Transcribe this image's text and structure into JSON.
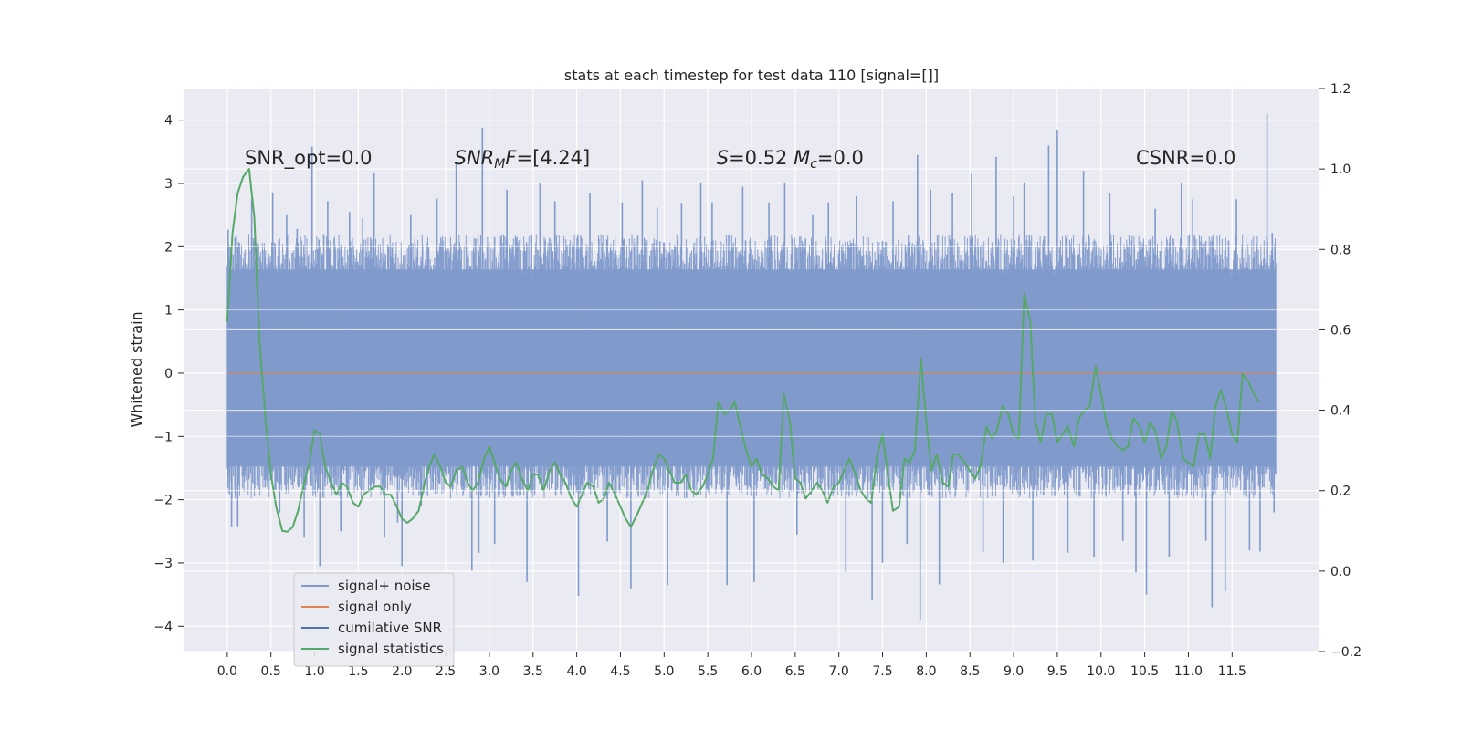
{
  "chart_data": {
    "type": "line",
    "title": "stats at each timestep for test data 110 [signal=[]]",
    "ylabel": "Whitened strain",
    "xlabel": "",
    "xlim": [
      -0.5,
      12.5
    ],
    "ylim": [
      -4.4,
      4.5
    ],
    "y2lim": [
      -0.2,
      1.2
    ],
    "grid": true,
    "legend_position": "lower-left",
    "x_ticks": [
      "0.0",
      "0.5",
      "1.0",
      "1.5",
      "2.0",
      "2.5",
      "3.0",
      "3.5",
      "4.0",
      "4.5",
      "5.0",
      "5.5",
      "6.0",
      "6.5",
      "7.0",
      "7.5",
      "8.0",
      "8.5",
      "9.0",
      "9.5",
      "10.0",
      "10.5",
      "11.0",
      "11.5"
    ],
    "y_ticks": [
      "4",
      "3",
      "2",
      "1",
      "0",
      "−1",
      "−2",
      "−3",
      "−4"
    ],
    "y2_ticks": [
      "1.2",
      "1.0",
      "0.8",
      "0.6",
      "0.4",
      "0.2",
      "0.0",
      "−0.2"
    ],
    "annotations": [
      {
        "id": "snr-opt",
        "text": "SNR_opt=0.0",
        "x": 0.2,
        "y": 3.3
      },
      {
        "id": "snr-mf",
        "parts": [
          {
            "text": "SNR",
            "italic": true
          },
          {
            "text": "M",
            "italic": true,
            "sub": true
          },
          {
            "text": "F",
            "italic": true
          },
          {
            "text": "=[4.24]",
            "italic": false
          }
        ],
        "x": 2.6,
        "y": 3.3
      },
      {
        "id": "s-mc",
        "parts": [
          {
            "text": "S",
            "italic": true
          },
          {
            "text": "=0.52   ",
            "italic": false
          },
          {
            "text": "M",
            "italic": true
          },
          {
            "text": "c",
            "italic": true,
            "sub": true
          },
          {
            "text": "=0.0",
            "italic": false
          }
        ],
        "x": 5.6,
        "y": 3.3
      },
      {
        "id": "csnr",
        "text": "CSNR=0.0",
        "x": 10.4,
        "y": 3.3
      }
    ],
    "series": [
      {
        "name": "signal+ noise",
        "color": "#7f9acb",
        "axis": "left",
        "kind": "noise",
        "x_range": [
          0.0,
          12.0
        ],
        "typical_range": [
          -1.8,
          2.0
        ],
        "spikes": [
          [
            0.01,
            2.27
          ],
          [
            0.05,
            -2.42
          ],
          [
            0.12,
            -2.42
          ],
          [
            0.28,
            2.75
          ],
          [
            0.52,
            2.86
          ],
          [
            0.6,
            -2.2
          ],
          [
            0.68,
            2.5
          ],
          [
            0.8,
            2.28
          ],
          [
            0.88,
            -2.6
          ],
          [
            0.97,
            3.58
          ],
          [
            1.06,
            -3.05
          ],
          [
            1.15,
            2.72
          ],
          [
            1.3,
            -2.5
          ],
          [
            1.4,
            2.55
          ],
          [
            1.55,
            2.45
          ],
          [
            1.68,
            3.16
          ],
          [
            1.8,
            -2.6
          ],
          [
            1.95,
            -2.36
          ],
          [
            2.0,
            -3.05
          ],
          [
            2.1,
            2.5
          ],
          [
            2.22,
            -2.1
          ],
          [
            2.4,
            2.76
          ],
          [
            2.62,
            3.33
          ],
          [
            2.8,
            -3.12
          ],
          [
            2.88,
            -2.84
          ],
          [
            2.92,
            3.88
          ],
          [
            3.06,
            -2.7
          ],
          [
            3.2,
            2.9
          ],
          [
            3.43,
            -3.3
          ],
          [
            3.58,
            3.0
          ],
          [
            3.75,
            2.72
          ],
          [
            4.02,
            -3.52
          ],
          [
            4.15,
            2.85
          ],
          [
            4.35,
            -2.66
          ],
          [
            4.52,
            2.7
          ],
          [
            4.62,
            -3.4
          ],
          [
            4.75,
            3.05
          ],
          [
            4.92,
            2.62
          ],
          [
            5.04,
            -3.35
          ],
          [
            5.2,
            2.68
          ],
          [
            5.42,
            3.0
          ],
          [
            5.55,
            2.7
          ],
          [
            5.72,
            -3.35
          ],
          [
            5.9,
            2.95
          ],
          [
            6.03,
            -3.3
          ],
          [
            6.2,
            2.7
          ],
          [
            6.38,
            3.0
          ],
          [
            6.52,
            -2.55
          ],
          [
            6.7,
            2.5
          ],
          [
            6.88,
            2.7
          ],
          [
            7.08,
            -3.15
          ],
          [
            7.2,
            2.8
          ],
          [
            7.38,
            -3.58
          ],
          [
            7.5,
            -3.0
          ],
          [
            7.62,
            2.72
          ],
          [
            7.78,
            -2.7
          ],
          [
            7.9,
            3.45
          ],
          [
            7.93,
            -3.9
          ],
          [
            8.05,
            2.9
          ],
          [
            8.15,
            -3.34
          ],
          [
            8.3,
            2.85
          ],
          [
            8.52,
            3.15
          ],
          [
            8.65,
            -2.82
          ],
          [
            8.8,
            3.42
          ],
          [
            8.88,
            -3.0
          ],
          [
            9.0,
            2.8
          ],
          [
            9.12,
            3.0
          ],
          [
            9.22,
            -2.96
          ],
          [
            9.4,
            3.6
          ],
          [
            9.5,
            3.85
          ],
          [
            9.62,
            -2.84
          ],
          [
            9.8,
            3.2
          ],
          [
            9.92,
            -2.9
          ],
          [
            10.1,
            2.85
          ],
          [
            10.25,
            -2.65
          ],
          [
            10.4,
            -3.15
          ],
          [
            10.52,
            -3.5
          ],
          [
            10.62,
            2.6
          ],
          [
            10.78,
            -2.9
          ],
          [
            10.92,
            3.0
          ],
          [
            11.05,
            2.75
          ],
          [
            11.2,
            -2.65
          ],
          [
            11.27,
            -3.7
          ],
          [
            11.42,
            -3.45
          ],
          [
            11.55,
            2.75
          ],
          [
            11.7,
            -2.8
          ],
          [
            11.82,
            -2.82
          ],
          [
            11.9,
            4.1
          ],
          [
            11.96,
            2.22
          ],
          [
            11.98,
            -2.2
          ]
        ]
      },
      {
        "name": "signal only",
        "color": "#dd8452",
        "axis": "left",
        "kind": "flat",
        "value": 0.0
      },
      {
        "name": "cumilative SNR",
        "color": "#4c72b0",
        "axis": "left",
        "kind": "hidden"
      },
      {
        "name": "signal statistics",
        "color": "#55a868",
        "axis": "right",
        "kind": "line",
        "points": [
          [
            0.0,
            0.62
          ],
          [
            0.06,
            0.84
          ],
          [
            0.12,
            0.94
          ],
          [
            0.18,
            0.98
          ],
          [
            0.25,
            1.0
          ],
          [
            0.31,
            0.88
          ],
          [
            0.37,
            0.57
          ],
          [
            0.44,
            0.37
          ],
          [
            0.5,
            0.24
          ],
          [
            0.56,
            0.16
          ],
          [
            0.63,
            0.1
          ],
          [
            0.69,
            0.098
          ],
          [
            0.75,
            0.11
          ],
          [
            0.81,
            0.15
          ],
          [
            0.87,
            0.21
          ],
          [
            0.94,
            0.27
          ],
          [
            1.0,
            0.35
          ],
          [
            1.06,
            0.34
          ],
          [
            1.12,
            0.26
          ],
          [
            1.19,
            0.22
          ],
          [
            1.25,
            0.19
          ],
          [
            1.31,
            0.22
          ],
          [
            1.37,
            0.21
          ],
          [
            1.44,
            0.17
          ],
          [
            1.5,
            0.16
          ],
          [
            1.56,
            0.19
          ],
          [
            1.62,
            0.2
          ],
          [
            1.69,
            0.21
          ],
          [
            1.75,
            0.21
          ],
          [
            1.81,
            0.19
          ],
          [
            1.87,
            0.19
          ],
          [
            1.94,
            0.16
          ],
          [
            2.0,
            0.13
          ],
          [
            2.06,
            0.12
          ],
          [
            2.12,
            0.13
          ],
          [
            2.19,
            0.15
          ],
          [
            2.25,
            0.21
          ],
          [
            2.31,
            0.26
          ],
          [
            2.37,
            0.29
          ],
          [
            2.44,
            0.26
          ],
          [
            2.5,
            0.22
          ],
          [
            2.56,
            0.21
          ],
          [
            2.62,
            0.25
          ],
          [
            2.69,
            0.26
          ],
          [
            2.75,
            0.22
          ],
          [
            2.81,
            0.2
          ],
          [
            2.87,
            0.22
          ],
          [
            2.94,
            0.28
          ],
          [
            3.0,
            0.31
          ],
          [
            3.06,
            0.27
          ],
          [
            3.12,
            0.23
          ],
          [
            3.19,
            0.21
          ],
          [
            3.25,
            0.25
          ],
          [
            3.31,
            0.27
          ],
          [
            3.37,
            0.23
          ],
          [
            3.44,
            0.2
          ],
          [
            3.5,
            0.24
          ],
          [
            3.56,
            0.24
          ],
          [
            3.62,
            0.2
          ],
          [
            3.69,
            0.25
          ],
          [
            3.75,
            0.27
          ],
          [
            3.81,
            0.24
          ],
          [
            3.87,
            0.22
          ],
          [
            3.94,
            0.18
          ],
          [
            4.0,
            0.16
          ],
          [
            4.06,
            0.19
          ],
          [
            4.12,
            0.22
          ],
          [
            4.19,
            0.21
          ],
          [
            4.25,
            0.17
          ],
          [
            4.31,
            0.18
          ],
          [
            4.37,
            0.22
          ],
          [
            4.44,
            0.19
          ],
          [
            4.5,
            0.16
          ],
          [
            4.56,
            0.13
          ],
          [
            4.62,
            0.11
          ],
          [
            4.69,
            0.14
          ],
          [
            4.75,
            0.17
          ],
          [
            4.81,
            0.2
          ],
          [
            4.87,
            0.25
          ],
          [
            4.94,
            0.29
          ],
          [
            5.0,
            0.28
          ],
          [
            5.06,
            0.25
          ],
          [
            5.12,
            0.22
          ],
          [
            5.19,
            0.22
          ],
          [
            5.25,
            0.24
          ],
          [
            5.31,
            0.2
          ],
          [
            5.37,
            0.19
          ],
          [
            5.44,
            0.21
          ],
          [
            5.5,
            0.24
          ],
          [
            5.56,
            0.28
          ],
          [
            5.62,
            0.42
          ],
          [
            5.69,
            0.39
          ],
          [
            5.75,
            0.4
          ],
          [
            5.81,
            0.42
          ],
          [
            5.87,
            0.36
          ],
          [
            5.94,
            0.3
          ],
          [
            6.0,
            0.26
          ],
          [
            6.06,
            0.28
          ],
          [
            6.12,
            0.24
          ],
          [
            6.19,
            0.23
          ],
          [
            6.25,
            0.21
          ],
          [
            6.31,
            0.2
          ],
          [
            6.37,
            0.44
          ],
          [
            6.44,
            0.37
          ],
          [
            6.5,
            0.23
          ],
          [
            6.56,
            0.22
          ],
          [
            6.62,
            0.18
          ],
          [
            6.69,
            0.2
          ],
          [
            6.75,
            0.22
          ],
          [
            6.81,
            0.2
          ],
          [
            6.87,
            0.17
          ],
          [
            6.94,
            0.21
          ],
          [
            7.0,
            0.22
          ],
          [
            7.06,
            0.25
          ],
          [
            7.12,
            0.28
          ],
          [
            7.19,
            0.24
          ],
          [
            7.25,
            0.2
          ],
          [
            7.31,
            0.18
          ],
          [
            7.37,
            0.17
          ],
          [
            7.44,
            0.29
          ],
          [
            7.5,
            0.34
          ],
          [
            7.56,
            0.24
          ],
          [
            7.62,
            0.15
          ],
          [
            7.69,
            0.16
          ],
          [
            7.75,
            0.28
          ],
          [
            7.81,
            0.27
          ],
          [
            7.87,
            0.3
          ],
          [
            7.94,
            0.53
          ],
          [
            8.0,
            0.37
          ],
          [
            8.06,
            0.25
          ],
          [
            8.12,
            0.29
          ],
          [
            8.19,
            0.22
          ],
          [
            8.25,
            0.21
          ],
          [
            8.31,
            0.29
          ],
          [
            8.37,
            0.29
          ],
          [
            8.44,
            0.27
          ],
          [
            8.5,
            0.25
          ],
          [
            8.56,
            0.23
          ],
          [
            8.62,
            0.26
          ],
          [
            8.69,
            0.36
          ],
          [
            8.75,
            0.33
          ],
          [
            8.81,
            0.35
          ],
          [
            8.87,
            0.41
          ],
          [
            8.94,
            0.39
          ],
          [
            9.0,
            0.34
          ],
          [
            9.06,
            0.33
          ],
          [
            9.12,
            0.69
          ],
          [
            9.19,
            0.62
          ],
          [
            9.25,
            0.37
          ],
          [
            9.31,
            0.32
          ],
          [
            9.37,
            0.39
          ],
          [
            9.44,
            0.39
          ],
          [
            9.5,
            0.32
          ],
          [
            9.56,
            0.34
          ],
          [
            9.62,
            0.36
          ],
          [
            9.69,
            0.31
          ],
          [
            9.75,
            0.38
          ],
          [
            9.81,
            0.4
          ],
          [
            9.87,
            0.41
          ],
          [
            9.94,
            0.51
          ],
          [
            10.0,
            0.44
          ],
          [
            10.06,
            0.37
          ],
          [
            10.12,
            0.33
          ],
          [
            10.19,
            0.31
          ],
          [
            10.25,
            0.3
          ],
          [
            10.31,
            0.31
          ],
          [
            10.37,
            0.38
          ],
          [
            10.44,
            0.36
          ],
          [
            10.5,
            0.32
          ],
          [
            10.56,
            0.37
          ],
          [
            10.62,
            0.35
          ],
          [
            10.69,
            0.28
          ],
          [
            10.75,
            0.31
          ],
          [
            10.81,
            0.4
          ],
          [
            10.87,
            0.37
          ],
          [
            10.94,
            0.28
          ],
          [
            11.0,
            0.27
          ],
          [
            11.06,
            0.26
          ],
          [
            11.12,
            0.34
          ],
          [
            11.19,
            0.34
          ],
          [
            11.25,
            0.28
          ],
          [
            11.31,
            0.41
          ],
          [
            11.37,
            0.45
          ],
          [
            11.44,
            0.4
          ],
          [
            11.5,
            0.34
          ],
          [
            11.56,
            0.32
          ],
          [
            11.62,
            0.49
          ],
          [
            11.69,
            0.47
          ],
          [
            11.75,
            0.44
          ],
          [
            11.81,
            0.42
          ]
        ]
      }
    ]
  }
}
